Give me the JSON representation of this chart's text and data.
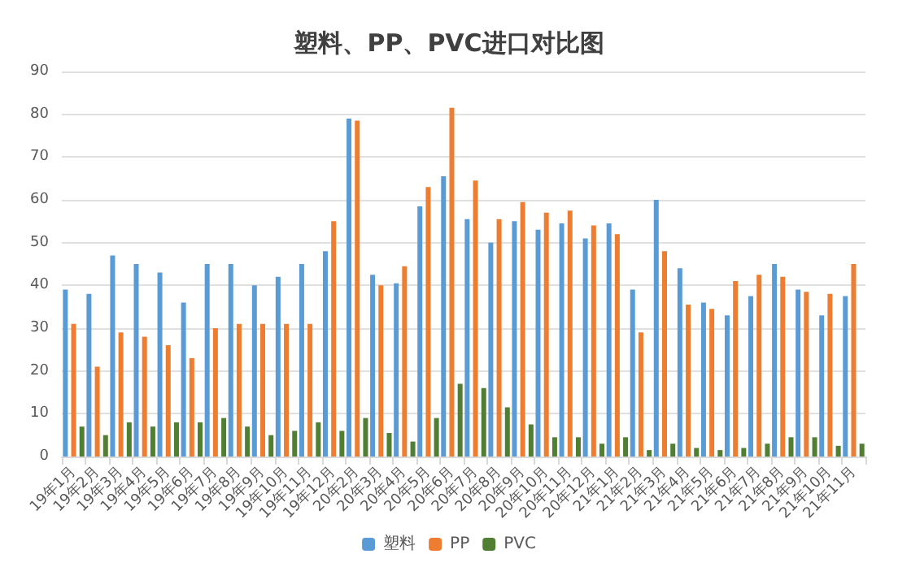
{
  "chart_data": {
    "type": "bar",
    "title": "塑料、PP、PVC进口对比图",
    "categories": [
      "19年1月",
      "19年2月",
      "19年3月",
      "19年4月",
      "19年5月",
      "19年6月",
      "19年7月",
      "19年8月",
      "19年9月",
      "19年10月",
      "19年11月",
      "19年12月",
      "20年2月",
      "20年3月",
      "20年4月",
      "20年5月",
      "20年6月",
      "20年7月",
      "20年8月",
      "20年9月",
      "20年10月",
      "20年11月",
      "20年12月",
      "21年1月",
      "21年2月",
      "21年3月",
      "21年4月",
      "21年5月",
      "21年6月",
      "21年7月",
      "21年8月",
      "21年9月",
      "21年10月",
      "21年11月"
    ],
    "series": [
      {
        "name": "塑料",
        "color": "#5b9bd5",
        "values": [
          39,
          38,
          47,
          45,
          43,
          36,
          45,
          45,
          40,
          42,
          45,
          48,
          79,
          42.5,
          40.5,
          58.5,
          65.5,
          55.5,
          50,
          55,
          53,
          54.5,
          51,
          54.5,
          39,
          60,
          44,
          36,
          33,
          37.5,
          45,
          39,
          33,
          37.5
        ]
      },
      {
        "name": "PP",
        "color": "#ed7d31",
        "values": [
          31,
          21,
          29,
          28,
          26,
          23,
          30,
          31,
          31,
          31,
          31,
          55,
          78.5,
          40,
          44.5,
          63,
          81.5,
          64.5,
          55.5,
          59.5,
          57,
          57.5,
          54,
          52,
          29,
          48,
          35.5,
          34.5,
          41,
          42.5,
          42,
          38.5,
          38,
          45
        ]
      },
      {
        "name": "PVC",
        "color": "#507e32",
        "values": [
          7,
          5,
          8,
          7,
          8,
          8,
          9,
          7,
          5,
          6,
          8,
          6,
          9,
          5.5,
          3.5,
          9,
          17,
          16,
          11.5,
          7.5,
          4.5,
          4.5,
          3,
          4.5,
          1.5,
          3,
          2,
          1.5,
          2,
          3,
          4.5,
          4.5,
          2.5,
          3
        ]
      }
    ],
    "ylim": [
      0,
      90
    ],
    "yticks": [
      0,
      10,
      20,
      30,
      40,
      50,
      60,
      70,
      80,
      90
    ],
    "grid": "y",
    "legend": "bottom"
  }
}
